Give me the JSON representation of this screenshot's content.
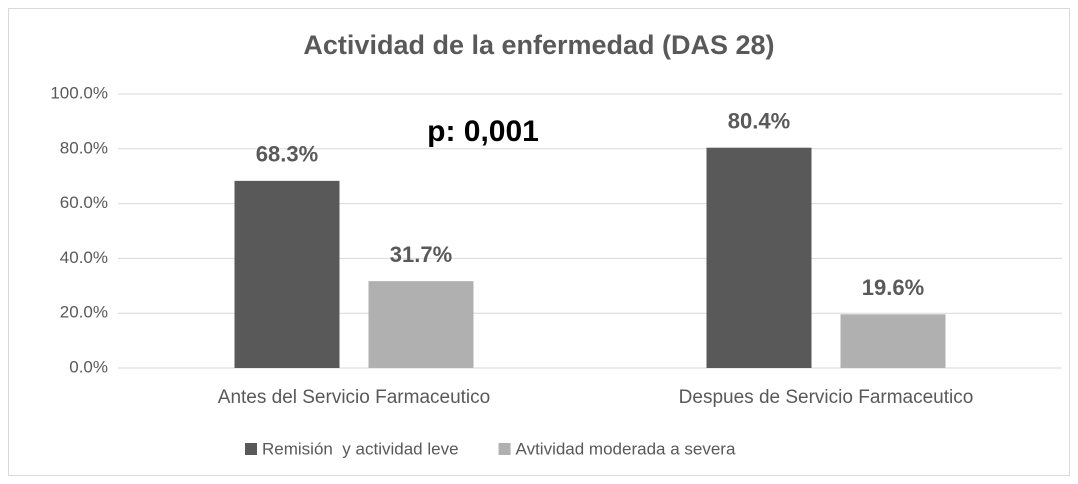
{
  "chart_data": {
    "type": "bar",
    "title": "Actividad de la enfermedad (DAS 28)",
    "annotation": "p: 0,001",
    "categories": [
      "Antes del Servicio Farmaceutico",
      "Despues de Servicio Farmaceutico"
    ],
    "series": [
      {
        "name": "Remisión  y actividad leve",
        "color": "#595959",
        "values": [
          68.3,
          80.4
        ],
        "value_labels": [
          "68.3%",
          "80.4%"
        ]
      },
      {
        "name": "Avtividad moderada a severa",
        "color": "#b0b0b0",
        "values": [
          31.7,
          19.6
        ],
        "value_labels": [
          "31.7%",
          "19.6%"
        ]
      }
    ],
    "ylim": [
      0,
      100
    ],
    "yticks": [
      {
        "value": 0,
        "label": "0.0%"
      },
      {
        "value": 20,
        "label": "20.0%"
      },
      {
        "value": 40,
        "label": "40.0%"
      },
      {
        "value": 60,
        "label": "60.0%"
      },
      {
        "value": 80,
        "label": "80.0%"
      },
      {
        "value": 100,
        "label": "100.0%"
      }
    ],
    "grid": true,
    "legend": "bottom"
  }
}
